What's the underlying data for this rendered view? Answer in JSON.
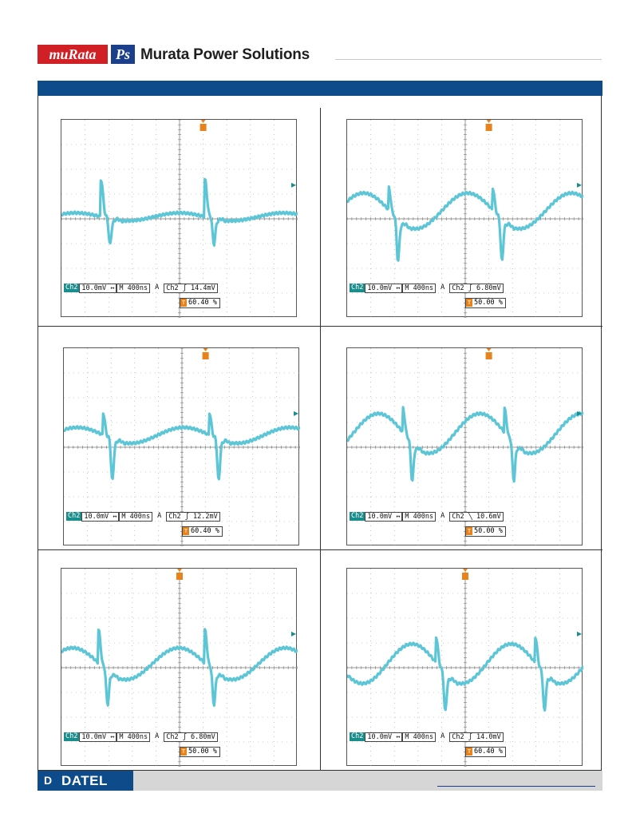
{
  "header": {
    "logo_murata": "muRata",
    "logo_ps": "Ps",
    "brand": "Murata Power Solutions"
  },
  "footer": {
    "logo_mark": "D",
    "logo_word": "DATEL"
  },
  "colors": {
    "band": "#0d4b8a",
    "trace": "#5cc6d6",
    "channel_badge": "#1a8d8d",
    "trigger_badge": "#e8821a"
  },
  "scopes": [
    {
      "ch": "Ch2",
      "scale": "10.0mV",
      "coupling": "↔",
      "time": "M 400ns",
      "acq": "A",
      "trig_ch": "Ch2",
      "slope": "ʃ",
      "level": "14.4mV",
      "trig_pos": "60.40 %"
    },
    {
      "ch": "Ch2",
      "scale": "10.0mV",
      "coupling": "↔",
      "time": "M 400ns",
      "acq": "A",
      "trig_ch": "Ch2",
      "slope": "ʃ",
      "level": "6.80mV",
      "trig_pos": "50.00 %"
    },
    {
      "ch": "Ch2",
      "scale": "10.0mV",
      "coupling": "↔",
      "time": "M 400ns",
      "acq": "A",
      "trig_ch": "Ch2",
      "slope": "ʃ",
      "level": "12.2mV",
      "trig_pos": "60.40 %"
    },
    {
      "ch": "Ch2",
      "scale": "10.0mV",
      "coupling": "↔",
      "time": "M 400ns",
      "acq": "A",
      "trig_ch": "Ch2",
      "slope": "╲",
      "level": "10.6mV",
      "trig_pos": "50.00 %"
    },
    {
      "ch": "Ch2",
      "scale": "10.0mV",
      "coupling": "↔",
      "time": "M 400ns",
      "acq": "A",
      "trig_ch": "Ch2",
      "slope": "ʃ",
      "level": "6.80mV",
      "trig_pos": "50.00 %"
    },
    {
      "ch": "Ch2",
      "scale": "10.0mV",
      "coupling": "↔",
      "time": "M 400ns",
      "acq": "A",
      "trig_ch": "Ch2",
      "slope": "ʃ",
      "level": "14.0mV",
      "trig_pos": "60.40 %"
    }
  ]
}
